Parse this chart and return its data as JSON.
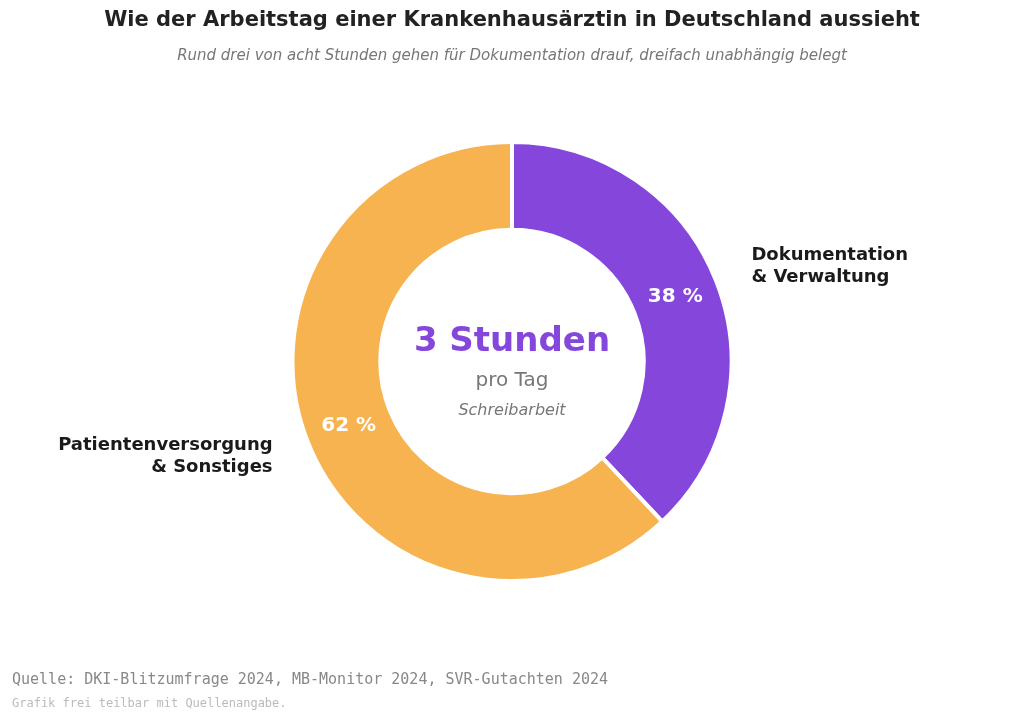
{
  "chart_data": {
    "type": "donut",
    "title": "Wie der Arbeitstag einer Krankenhausärztin in Deutschland aussieht",
    "subtitle": "Rund drei von acht Stunden gehen für Dokumentation drauf, dreifach unabhängig belegt",
    "categories": [
      "Dokumentation & Verwaltung",
      "Patientenversorgung & Sonstiges"
    ],
    "values": [
      38,
      62
    ],
    "colors": [
      "#8446db",
      "#f7b350"
    ],
    "value_labels": [
      "38 %",
      "62 %"
    ],
    "legend": false,
    "annotations": [
      "3 Stunden",
      "pro Tag",
      "Schreibarbeit",
      "Quelle: DKI-Blitzumfrage 2024, MB-Monitor 2024, SVR-Gutachten 2024",
      "Grafik frei teilbar mit Quellenangabe."
    ]
  }
}
